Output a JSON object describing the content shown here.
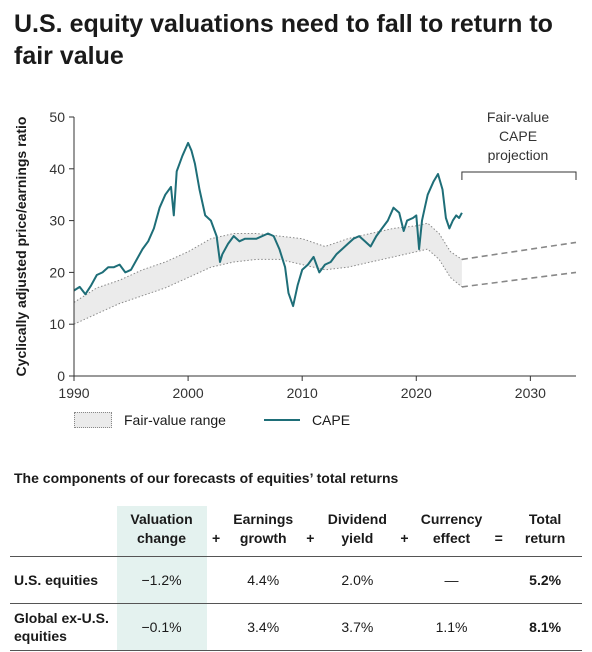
{
  "title": "U.S. equity valuations need to fall to return to fair value",
  "chart_data": {
    "type": "line",
    "ylabel": "Cyclically adjusted price/earnings ratio",
    "xlabel": "",
    "xlim": [
      1990,
      2034
    ],
    "ylim": [
      0,
      50
    ],
    "xticks": [
      1990,
      2000,
      2010,
      2020,
      2030
    ],
    "yticks": [
      0,
      10,
      20,
      30,
      40,
      50
    ],
    "grid": false,
    "legend_position": "bottom-left",
    "annotation": "Fair-value CAPE projection",
    "annotation_lines": [
      "Fair-value",
      "CAPE",
      "projection"
    ],
    "projection_range": [
      2024,
      2034
    ],
    "projection_upper": [
      [
        2024,
        22.5
      ],
      [
        2034,
        25.8
      ]
    ],
    "projection_lower": [
      [
        2024,
        17.2
      ],
      [
        2034,
        20.0
      ]
    ],
    "series": [
      {
        "name": "CAPE",
        "color": "#1e6e78",
        "points": [
          [
            1990,
            16.5
          ],
          [
            1990.5,
            17.2
          ],
          [
            1991,
            15.8
          ],
          [
            1991.5,
            17.5
          ],
          [
            1992,
            19.5
          ],
          [
            1992.5,
            20.0
          ],
          [
            1993,
            21.0
          ],
          [
            1993.5,
            21.0
          ],
          [
            1994,
            21.5
          ],
          [
            1994.5,
            20.0
          ],
          [
            1995,
            20.5
          ],
          [
            1995.5,
            22.5
          ],
          [
            1996,
            24.5
          ],
          [
            1996.5,
            26.0
          ],
          [
            1997,
            28.5
          ],
          [
            1997.5,
            32.5
          ],
          [
            1998,
            35.0
          ],
          [
            1998.5,
            36.5
          ],
          [
            1998.75,
            31.0
          ],
          [
            1999,
            39.5
          ],
          [
            1999.5,
            42.5
          ],
          [
            2000,
            45.0
          ],
          [
            2000.3,
            43.5
          ],
          [
            2000.6,
            41.0
          ],
          [
            2001,
            36.0
          ],
          [
            2001.5,
            31.0
          ],
          [
            2002,
            30.0
          ],
          [
            2002.5,
            27.0
          ],
          [
            2002.8,
            22.0
          ],
          [
            2003,
            23.5
          ],
          [
            2003.5,
            25.5
          ],
          [
            2004,
            27.0
          ],
          [
            2004.5,
            26.0
          ],
          [
            2005,
            26.5
          ],
          [
            2006,
            26.5
          ],
          [
            2007,
            27.5
          ],
          [
            2007.5,
            27.0
          ],
          [
            2008,
            24.5
          ],
          [
            2008.5,
            21.0
          ],
          [
            2008.8,
            16.0
          ],
          [
            2009.2,
            13.5
          ],
          [
            2009.6,
            17.5
          ],
          [
            2010,
            20.5
          ],
          [
            2010.5,
            21.5
          ],
          [
            2011,
            23.0
          ],
          [
            2011.5,
            20.0
          ],
          [
            2012,
            21.5
          ],
          [
            2012.5,
            22.0
          ],
          [
            2013,
            23.5
          ],
          [
            2013.5,
            24.5
          ],
          [
            2014,
            25.5
          ],
          [
            2014.5,
            26.5
          ],
          [
            2015,
            27.0
          ],
          [
            2015.5,
            26.0
          ],
          [
            2016,
            25.0
          ],
          [
            2016.5,
            27.0
          ],
          [
            2017,
            28.5
          ],
          [
            2017.5,
            30.0
          ],
          [
            2018,
            32.5
          ],
          [
            2018.5,
            31.5
          ],
          [
            2018.9,
            28.0
          ],
          [
            2019.2,
            30.0
          ],
          [
            2019.7,
            30.5
          ],
          [
            2020,
            31.0
          ],
          [
            2020.25,
            24.5
          ],
          [
            2020.5,
            30.0
          ],
          [
            2020.75,
            32.5
          ],
          [
            2021,
            35.0
          ],
          [
            2021.5,
            37.5
          ],
          [
            2021.9,
            39.0
          ],
          [
            2022.3,
            36.0
          ],
          [
            2022.6,
            30.5
          ],
          [
            2022.9,
            28.5
          ],
          [
            2023.2,
            30.0
          ],
          [
            2023.5,
            31.0
          ],
          [
            2023.75,
            30.5
          ],
          [
            2024,
            31.5
          ]
        ]
      },
      {
        "name": "Fair-value range",
        "upper": [
          [
            1990,
            14.2
          ],
          [
            1992,
            17.0
          ],
          [
            1994,
            18.5
          ],
          [
            1996,
            20.5
          ],
          [
            1998,
            22.0
          ],
          [
            2000,
            24.0
          ],
          [
            2002,
            26.5
          ],
          [
            2004,
            27.5
          ],
          [
            2006,
            27.5
          ],
          [
            2008,
            27.0
          ],
          [
            2010,
            26.5
          ],
          [
            2012,
            25.0
          ],
          [
            2014,
            26.5
          ],
          [
            2016,
            27.5
          ],
          [
            2018,
            28.5
          ],
          [
            2020,
            29.0
          ],
          [
            2021,
            29.5
          ],
          [
            2022,
            27.5
          ],
          [
            2023,
            24.0
          ],
          [
            2024,
            22.5
          ]
        ],
        "lower": [
          [
            1990,
            10.0
          ],
          [
            1992,
            12.0
          ],
          [
            1994,
            14.0
          ],
          [
            1996,
            15.5
          ],
          [
            1998,
            17.0
          ],
          [
            2000,
            19.0
          ],
          [
            2002,
            21.0
          ],
          [
            2004,
            22.0
          ],
          [
            2006,
            22.5
          ],
          [
            2008,
            22.5
          ],
          [
            2010,
            21.5
          ],
          [
            2012,
            20.5
          ],
          [
            2014,
            21.0
          ],
          [
            2016,
            22.0
          ],
          [
            2018,
            23.0
          ],
          [
            2020,
            24.0
          ],
          [
            2021,
            24.5
          ],
          [
            2022,
            22.5
          ],
          [
            2023,
            19.0
          ],
          [
            2024,
            17.2
          ]
        ]
      }
    ]
  },
  "legend": {
    "fair_value_label": "Fair-value range",
    "cape_label": "CAPE"
  },
  "table": {
    "title": "The components of our forecasts of equities’ total returns",
    "columns": [
      "Valuation change",
      "Earnings growth",
      "Dividend yield",
      "Currency effect",
      "Total return"
    ],
    "columns_lines": [
      [
        "Valuation",
        "change"
      ],
      [
        "Earnings",
        "growth"
      ],
      [
        "Dividend",
        "yield"
      ],
      [
        "Currency",
        "effect"
      ],
      [
        "Total",
        "return"
      ]
    ],
    "operators": [
      "+",
      "+",
      "+",
      "="
    ],
    "rows": [
      {
        "label": "U.S. equities",
        "label_lines": [
          "U.S. equities"
        ],
        "values": [
          "−1.2%",
          "4.4%",
          "2.0%",
          "—",
          "5.2%"
        ]
      },
      {
        "label": "Global ex-U.S. equities",
        "label_lines": [
          "Global ex-U.S.",
          "equities"
        ],
        "values": [
          "−0.1%",
          "3.4%",
          "3.7%",
          "1.1%",
          "8.1%"
        ]
      }
    ]
  },
  "colors": {
    "cape": "#1e6e78",
    "range_fill": "#ebebeb",
    "highlight": "#e4f2ef"
  }
}
